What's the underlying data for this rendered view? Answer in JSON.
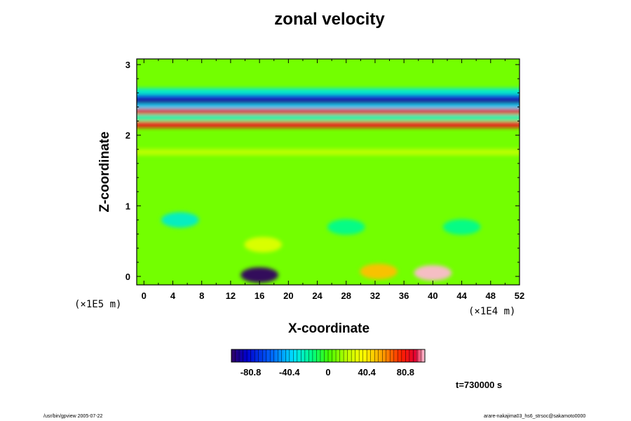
{
  "chart_data": {
    "type": "heatmap",
    "title": "zonal velocity",
    "xlabel": "X-coordinate",
    "ylabel": "Z-coordinate",
    "x_unit": "(×1E4 m)",
    "y_unit": "(×1E5 m)",
    "xlim": [
      -1,
      52
    ],
    "ylim": [
      -0.12,
      3.08
    ],
    "x_ticks": [
      0,
      4,
      8,
      12,
      16,
      20,
      24,
      28,
      32,
      36,
      40,
      44,
      48,
      52
    ],
    "x_tick_labels": [
      "0",
      "4",
      "8",
      "12",
      "16",
      "20",
      "24",
      "28",
      "32",
      "36",
      "40",
      "44",
      "48",
      "52"
    ],
    "y_ticks": [
      0,
      1,
      2,
      3
    ],
    "y_tick_labels": [
      "0",
      "1",
      "2",
      "3"
    ],
    "colorbar": {
      "min": -101,
      "max": 101,
      "ticks": [
        -80.8,
        -40.4,
        0,
        40.4,
        80.8
      ],
      "tick_labels": [
        "-80.8",
        "-40.4",
        "0",
        "40.4",
        "80.8"
      ]
    },
    "features": [
      {
        "kind": "layer",
        "z": 2.62,
        "value": -30
      },
      {
        "kind": "layer",
        "z": 2.53,
        "value": -70
      },
      {
        "kind": "layer",
        "z": 2.47,
        "value": -95
      },
      {
        "kind": "layer",
        "z": 2.4,
        "value": -40
      },
      {
        "kind": "layer",
        "z": 2.33,
        "value": 90
      },
      {
        "kind": "layer",
        "z": 2.25,
        "value": -25
      },
      {
        "kind": "layer",
        "z": 2.15,
        "value": 85
      },
      {
        "kind": "layer",
        "z": 1.76,
        "value": 20
      },
      {
        "kind": "blob",
        "x": 16,
        "z": 0.02,
        "value": -101
      },
      {
        "kind": "blob",
        "x": 40,
        "z": 0.05,
        "value": 100
      },
      {
        "kind": "blob",
        "x": 32.5,
        "z": 0.07,
        "value": 50
      },
      {
        "kind": "blob",
        "x": 16.5,
        "z": 0.45,
        "value": 28
      },
      {
        "kind": "blob",
        "x": 5,
        "z": 0.8,
        "value": -28
      },
      {
        "kind": "blob",
        "x": 28,
        "z": 0.7,
        "value": -18
      },
      {
        "kind": "blob",
        "x": 44,
        "z": 0.7,
        "value": -18
      }
    ]
  },
  "time_label": "t=730000 s",
  "footer": {
    "left": "/usr/bin/gpview 2005-07-22",
    "right": "arare-nakajima03_hs6_strsoc@sakamoto0000"
  }
}
